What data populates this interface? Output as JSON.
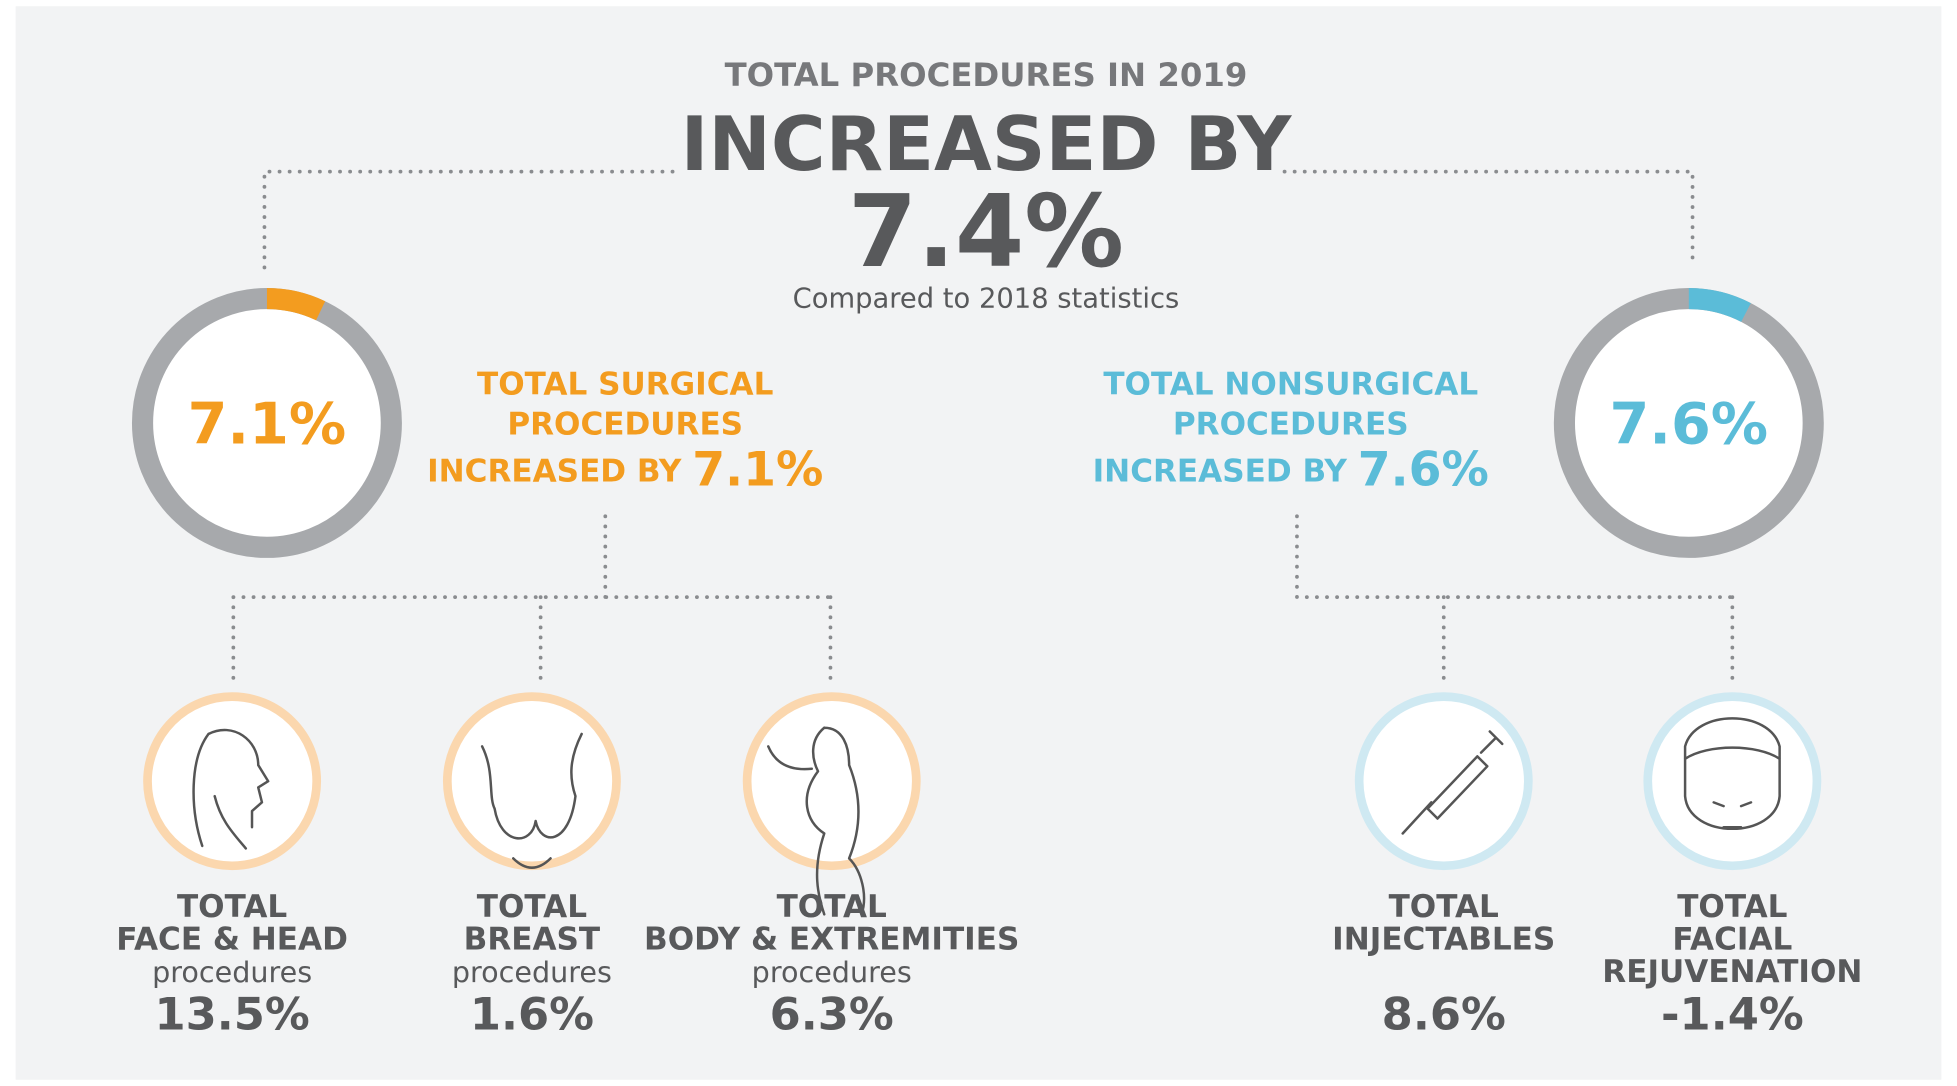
{
  "header": {
    "kicker": "TOTAL PROCEDURES IN 2019",
    "headline": "INCREASED BY",
    "value": "7.4%",
    "note": "Compared to 2018 statistics"
  },
  "surgical": {
    "lines": [
      "TOTAL SURGICAL",
      "PROCEDURES",
      "INCREASED BY"
    ],
    "value": "7.1%",
    "donut": {
      "value": 7.1,
      "label": "7.1%"
    },
    "categories": [
      {
        "lines": [
          "TOTAL",
          "FACE & HEAD"
        ],
        "sub": "procedures",
        "value": "13.5%"
      },
      {
        "lines": [
          "TOTAL",
          "BREAST"
        ],
        "sub": "procedures",
        "value": "1.6%"
      },
      {
        "lines": [
          "TOTAL",
          "BODY & EXTREMITIES"
        ],
        "sub": "procedures",
        "value": "6.3%"
      }
    ]
  },
  "nonsurgical": {
    "lines": [
      "TOTAL NONSURGICAL",
      "PROCEDURES",
      "INCREASED BY"
    ],
    "value": "7.6%",
    "donut": {
      "value": 7.6,
      "label": "7.6%"
    },
    "categories": [
      {
        "lines": [
          "TOTAL",
          "INJECTABLES"
        ],
        "value": "8.6%"
      },
      {
        "lines": [
          "TOTAL",
          "FACIAL",
          "REJUVENATION"
        ],
        "value": "-1.4%"
      }
    ]
  }
}
